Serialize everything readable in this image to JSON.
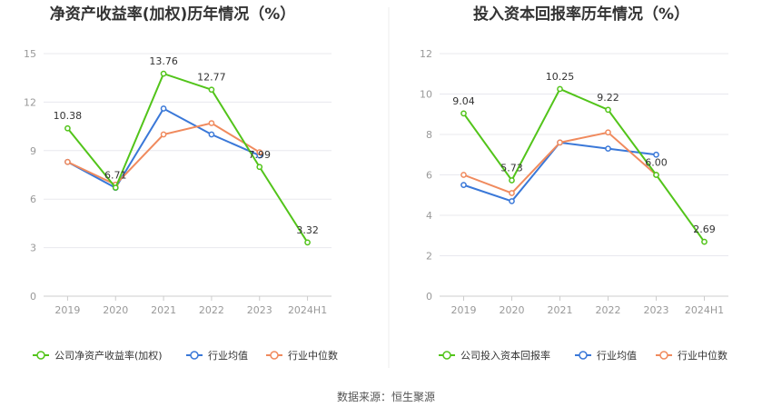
{
  "source": "数据来源：恒生聚源",
  "chart_data": [
    {
      "type": "line",
      "title": "净资产收益率(加权)历年情况（%）",
      "categories": [
        "2019",
        "2020",
        "2021",
        "2022",
        "2023",
        "2024H1"
      ],
      "ylim": [
        0,
        15
      ],
      "yticks": [
        0,
        3,
        6,
        9,
        12,
        15
      ],
      "grid": true,
      "legend_position": "bottom",
      "series": [
        {
          "name": "公司净资产收益率(加权)",
          "color": "#52c41a",
          "labeled": true,
          "values": [
            10.38,
            6.71,
            13.76,
            12.77,
            7.99,
            3.32
          ],
          "labels": [
            "10.38",
            "6.71",
            "13.76",
            "12.77",
            "7.99",
            "3.32"
          ]
        },
        {
          "name": "行业均值",
          "color": "#3a78d8",
          "labeled": false,
          "values": [
            8.3,
            6.7,
            11.6,
            10.0,
            8.7,
            null
          ]
        },
        {
          "name": "行业中位数",
          "color": "#f08a5d",
          "labeled": false,
          "values": [
            8.3,
            6.9,
            10.0,
            10.7,
            8.9,
            null
          ]
        }
      ]
    },
    {
      "type": "line",
      "title": "投入资本回报率历年情况（%）",
      "categories": [
        "2019",
        "2020",
        "2021",
        "2022",
        "2023",
        "2024H1"
      ],
      "ylim": [
        0,
        12
      ],
      "yticks": [
        0,
        2,
        4,
        6,
        8,
        10,
        12
      ],
      "grid": true,
      "legend_position": "bottom",
      "series": [
        {
          "name": "公司投入资本回报率",
          "color": "#52c41a",
          "labeled": true,
          "values": [
            9.04,
            5.73,
            10.25,
            9.22,
            6.0,
            2.69
          ],
          "labels": [
            "9.04",
            "5.73",
            "10.25",
            "9.22",
            "6.00",
            "2.69"
          ]
        },
        {
          "name": "行业均值",
          "color": "#3a78d8",
          "labeled": false,
          "values": [
            5.5,
            4.7,
            7.6,
            7.3,
            7.0,
            null
          ]
        },
        {
          "name": "行业中位数",
          "color": "#f08a5d",
          "labeled": false,
          "values": [
            6.0,
            5.1,
            7.6,
            8.1,
            6.0,
            null
          ]
        }
      ]
    }
  ]
}
